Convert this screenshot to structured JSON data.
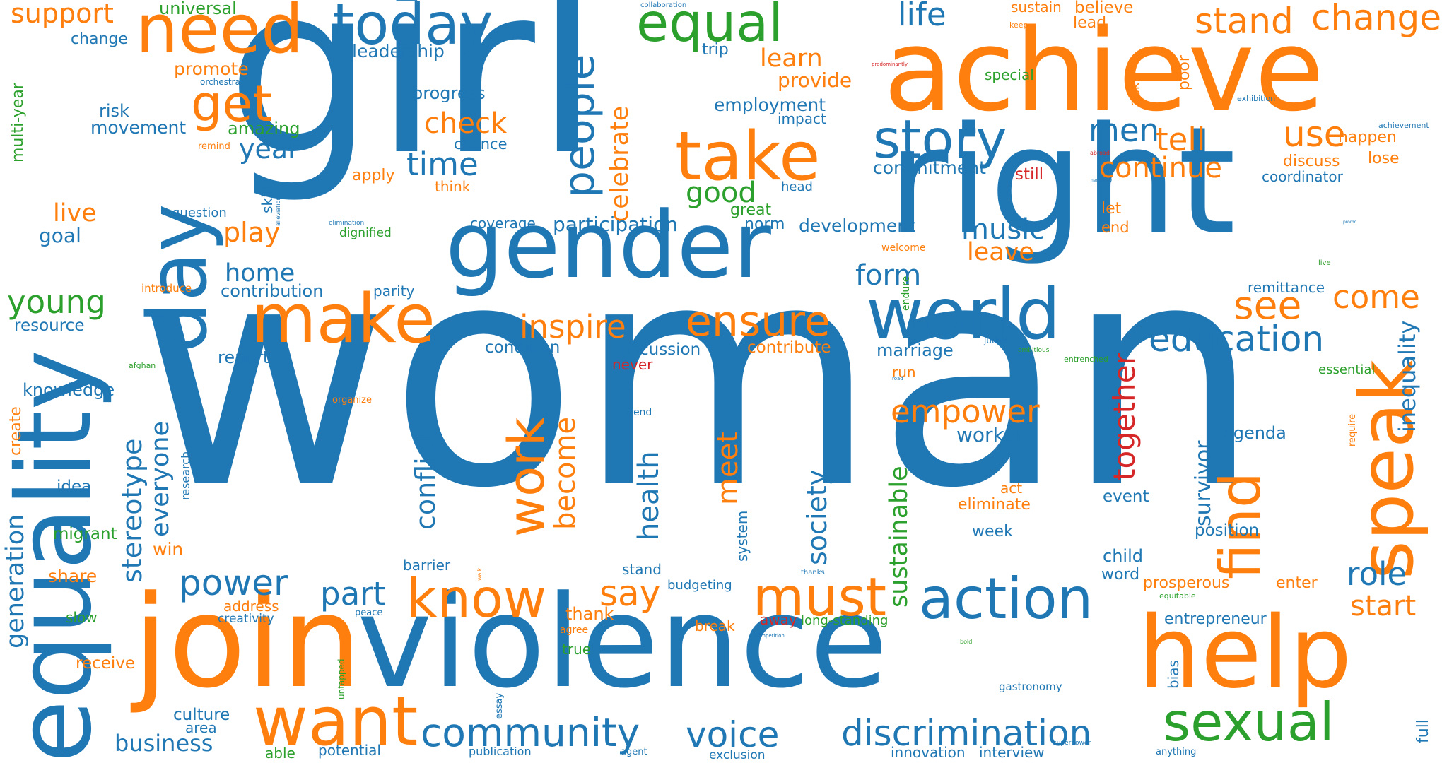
{
  "palette": {
    "blue": "#1f77b4",
    "orange": "#ff7f0e",
    "green": "#2ca02c",
    "red": "#d62728"
  },
  "words": [
    {
      "text": "woman",
      "color": "blue",
      "orientation": "horizontal"
    },
    {
      "text": "girl",
      "color": "blue",
      "orientation": "horizontal"
    },
    {
      "text": "right",
      "color": "blue",
      "orientation": "horizontal"
    },
    {
      "text": "achieve",
      "color": "orange",
      "orientation": "horizontal"
    },
    {
      "text": "violence",
      "color": "blue",
      "orientation": "horizontal"
    },
    {
      "text": "equality",
      "color": "blue",
      "orientation": "vertical"
    },
    {
      "text": "gender",
      "color": "blue",
      "orientation": "horizontal"
    },
    {
      "text": "join",
      "color": "orange",
      "orientation": "horizontal"
    },
    {
      "text": "help",
      "color": "orange",
      "orientation": "horizontal"
    },
    {
      "text": "day",
      "color": "blue",
      "orientation": "vertical"
    },
    {
      "text": "world",
      "color": "blue",
      "orientation": "horizontal"
    },
    {
      "text": "speak",
      "color": "orange",
      "orientation": "vertical"
    },
    {
      "text": "take",
      "color": "orange",
      "orientation": "horizontal"
    },
    {
      "text": "make",
      "color": "orange",
      "orientation": "horizontal"
    },
    {
      "text": "need",
      "color": "orange",
      "orientation": "horizontal"
    },
    {
      "text": "want",
      "color": "orange",
      "orientation": "horizontal"
    },
    {
      "text": "find",
      "color": "orange",
      "orientation": "vertical"
    },
    {
      "text": "action",
      "color": "blue",
      "orientation": "horizontal"
    },
    {
      "text": "sexual",
      "color": "green",
      "orientation": "horizontal"
    },
    {
      "text": "today",
      "color": "blue",
      "orientation": "horizontal"
    },
    {
      "text": "know",
      "color": "orange",
      "orientation": "horizontal"
    },
    {
      "text": "must",
      "color": "orange",
      "orientation": "horizontal"
    },
    {
      "text": "story",
      "color": "blue",
      "orientation": "horizontal"
    },
    {
      "text": "equal",
      "color": "green",
      "orientation": "horizontal"
    },
    {
      "text": "people",
      "color": "blue",
      "orientation": "vertical"
    },
    {
      "text": "work",
      "color": "orange",
      "orientation": "vertical"
    },
    {
      "text": "get",
      "color": "orange",
      "orientation": "horizontal"
    },
    {
      "text": "ensure",
      "color": "orange",
      "orientation": "horizontal"
    },
    {
      "text": "community",
      "color": "blue",
      "orientation": "horizontal"
    },
    {
      "text": "discrimination",
      "color": "blue",
      "orientation": "horizontal"
    },
    {
      "text": "education",
      "color": "blue",
      "orientation": "horizontal"
    },
    {
      "text": "voice",
      "color": "blue",
      "orientation": "horizontal"
    },
    {
      "text": "change",
      "color": "orange",
      "orientation": "horizontal"
    },
    {
      "text": "stand",
      "color": "orange",
      "orientation": "horizontal"
    },
    {
      "text": "power",
      "color": "blue",
      "orientation": "horizontal"
    },
    {
      "text": "see",
      "color": "orange",
      "orientation": "horizontal"
    },
    {
      "text": "music",
      "color": "blue",
      "orientation": "horizontal"
    },
    {
      "text": "empower",
      "color": "orange",
      "orientation": "horizontal"
    },
    {
      "text": "inspire",
      "color": "orange",
      "orientation": "horizontal"
    },
    {
      "text": "say",
      "color": "orange",
      "orientation": "horizontal"
    },
    {
      "text": "life",
      "color": "blue",
      "orientation": "horizontal"
    },
    {
      "text": "use",
      "color": "orange",
      "orientation": "horizontal"
    },
    {
      "text": "men",
      "color": "blue",
      "orientation": "horizontal"
    },
    {
      "text": "time",
      "color": "blue",
      "orientation": "horizontal"
    },
    {
      "text": "check",
      "color": "orange",
      "orientation": "horizontal"
    },
    {
      "text": "tell",
      "color": "orange",
      "orientation": "horizontal"
    },
    {
      "text": "continue",
      "color": "orange",
      "orientation": "horizontal"
    },
    {
      "text": "come",
      "color": "orange",
      "orientation": "horizontal"
    },
    {
      "text": "role",
      "color": "blue",
      "orientation": "horizontal"
    },
    {
      "text": "start",
      "color": "orange",
      "orientation": "horizontal"
    },
    {
      "text": "young",
      "color": "green",
      "orientation": "horizontal"
    },
    {
      "text": "part",
      "color": "blue",
      "orientation": "horizontal"
    },
    {
      "text": "form",
      "color": "blue",
      "orientation": "horizontal"
    },
    {
      "text": "leave",
      "color": "orange",
      "orientation": "horizontal"
    },
    {
      "text": "good",
      "color": "green",
      "orientation": "horizontal"
    },
    {
      "text": "year",
      "color": "blue",
      "orientation": "horizontal"
    },
    {
      "text": "home",
      "color": "blue",
      "orientation": "horizontal"
    },
    {
      "text": "play",
      "color": "orange",
      "orientation": "horizontal"
    },
    {
      "text": "support",
      "color": "orange",
      "orientation": "horizontal"
    },
    {
      "text": "live",
      "color": "orange",
      "orientation": "horizontal"
    },
    {
      "text": "learn",
      "color": "orange",
      "orientation": "horizontal"
    },
    {
      "text": "together",
      "color": "red",
      "orientation": "vertical"
    },
    {
      "text": "celebrate",
      "color": "orange",
      "orientation": "vertical"
    },
    {
      "text": "health",
      "color": "blue",
      "orientation": "vertical"
    },
    {
      "text": "meet",
      "color": "orange",
      "orientation": "vertical"
    },
    {
      "text": "society",
      "color": "blue",
      "orientation": "vertical"
    },
    {
      "text": "sustainable",
      "color": "green",
      "orientation": "vertical"
    },
    {
      "text": "become",
      "color": "orange",
      "orientation": "vertical"
    },
    {
      "text": "stereotype",
      "color": "blue",
      "orientation": "vertical"
    },
    {
      "text": "everyone",
      "color": "blue",
      "orientation": "vertical"
    },
    {
      "text": "conflict",
      "color": "blue",
      "orientation": "vertical"
    },
    {
      "text": "inequality",
      "color": "blue",
      "orientation": "vertical"
    },
    {
      "text": "generation",
      "color": "blue",
      "orientation": "vertical"
    },
    {
      "text": "survivor",
      "color": "blue",
      "orientation": "vertical"
    },
    {
      "text": "business",
      "color": "blue",
      "orientation": "horizontal"
    },
    {
      "text": "development",
      "color": "blue",
      "orientation": "horizontal"
    },
    {
      "text": "participation",
      "color": "blue",
      "orientation": "horizontal"
    },
    {
      "text": "commitment",
      "color": "blue",
      "orientation": "horizontal"
    },
    {
      "text": "contribution",
      "color": "blue",
      "orientation": "horizontal"
    },
    {
      "text": "provide",
      "color": "orange",
      "orientation": "horizontal"
    },
    {
      "text": "employment",
      "color": "blue",
      "orientation": "horizontal"
    },
    {
      "text": "leadership",
      "color": "blue",
      "orientation": "horizontal"
    },
    {
      "text": "progress",
      "color": "blue",
      "orientation": "horizontal"
    },
    {
      "text": "movement",
      "color": "blue",
      "orientation": "horizontal"
    },
    {
      "text": "universal",
      "color": "green",
      "orientation": "horizontal"
    },
    {
      "text": "promote",
      "color": "orange",
      "orientation": "horizontal"
    },
    {
      "text": "change",
      "color": "blue",
      "orientation": "horizontal"
    },
    {
      "text": "risk",
      "color": "blue",
      "orientation": "horizontal"
    },
    {
      "text": "amazing",
      "color": "green",
      "orientation": "horizontal"
    },
    {
      "text": "goal",
      "color": "blue",
      "orientation": "horizontal"
    },
    {
      "text": "resource",
      "color": "blue",
      "orientation": "horizontal"
    },
    {
      "text": "knowledge",
      "color": "blue",
      "orientation": "horizontal"
    },
    {
      "text": "report",
      "color": "blue",
      "orientation": "horizontal"
    },
    {
      "text": "condition",
      "color": "blue",
      "orientation": "horizontal"
    },
    {
      "text": "discussion",
      "color": "blue",
      "orientation": "horizontal"
    },
    {
      "text": "contribute",
      "color": "orange",
      "orientation": "horizontal"
    },
    {
      "text": "marriage",
      "color": "blue",
      "orientation": "horizontal"
    },
    {
      "text": "worker",
      "color": "blue",
      "orientation": "horizontal"
    },
    {
      "text": "agenda",
      "color": "blue",
      "orientation": "horizontal"
    },
    {
      "text": "eliminate",
      "color": "orange",
      "orientation": "horizontal"
    },
    {
      "text": "week",
      "color": "blue",
      "orientation": "horizontal"
    },
    {
      "text": "event",
      "color": "blue",
      "orientation": "horizontal"
    },
    {
      "text": "position",
      "color": "blue",
      "orientation": "horizontal"
    },
    {
      "text": "child",
      "color": "blue",
      "orientation": "horizontal"
    },
    {
      "text": "word",
      "color": "blue",
      "orientation": "horizontal"
    },
    {
      "text": "prosperous",
      "color": "orange",
      "orientation": "horizontal"
    },
    {
      "text": "enter",
      "color": "orange",
      "orientation": "horizontal"
    },
    {
      "text": "entrepreneur",
      "color": "blue",
      "orientation": "horizontal"
    },
    {
      "text": "remittance",
      "color": "blue",
      "orientation": "horizontal"
    },
    {
      "text": "happen",
      "color": "orange",
      "orientation": "horizontal"
    },
    {
      "text": "lose",
      "color": "orange",
      "orientation": "horizontal"
    },
    {
      "text": "discuss",
      "color": "orange",
      "orientation": "horizontal"
    },
    {
      "text": "coordinator",
      "color": "blue",
      "orientation": "horizontal"
    },
    {
      "text": "believe",
      "color": "orange",
      "orientation": "horizontal"
    },
    {
      "text": "sustain",
      "color": "orange",
      "orientation": "horizontal"
    },
    {
      "text": "lead",
      "color": "orange",
      "orientation": "horizontal"
    },
    {
      "text": "special",
      "color": "green",
      "orientation": "horizontal"
    },
    {
      "text": "still",
      "color": "red",
      "orientation": "horizontal"
    },
    {
      "text": "let",
      "color": "orange",
      "orientation": "horizontal"
    },
    {
      "text": "end",
      "color": "orange",
      "orientation": "horizontal"
    },
    {
      "text": "impact",
      "color": "blue",
      "orientation": "horizontal"
    },
    {
      "text": "chance",
      "color": "blue",
      "orientation": "horizontal"
    },
    {
      "text": "think",
      "color": "orange",
      "orientation": "horizontal"
    },
    {
      "text": "apply",
      "color": "orange",
      "orientation": "horizontal"
    },
    {
      "text": "trip",
      "color": "blue",
      "orientation": "horizontal"
    },
    {
      "text": "great",
      "color": "green",
      "orientation": "horizontal"
    },
    {
      "text": "norm",
      "color": "blue",
      "orientation": "horizontal"
    },
    {
      "text": "coverage",
      "color": "blue",
      "orientation": "horizontal"
    },
    {
      "text": "head",
      "color": "blue",
      "orientation": "horizontal"
    },
    {
      "text": "question",
      "color": "blue",
      "orientation": "horizontal"
    },
    {
      "text": "dignified",
      "color": "green",
      "orientation": "horizontal"
    },
    {
      "text": "parity",
      "color": "blue",
      "orientation": "horizontal"
    },
    {
      "text": "introduce",
      "color": "orange",
      "orientation": "horizontal"
    },
    {
      "text": "never",
      "color": "red",
      "orientation": "horizontal"
    },
    {
      "text": "run",
      "color": "orange",
      "orientation": "horizontal"
    },
    {
      "text": "win",
      "color": "orange",
      "orientation": "horizontal"
    },
    {
      "text": "share",
      "color": "orange",
      "orientation": "horizontal"
    },
    {
      "text": "migrant",
      "color": "green",
      "orientation": "horizontal"
    },
    {
      "text": "idea",
      "color": "blue",
      "orientation": "horizontal"
    },
    {
      "text": "slow",
      "color": "green",
      "orientation": "horizontal"
    },
    {
      "text": "address",
      "color": "orange",
      "orientation": "horizontal"
    },
    {
      "text": "creativity",
      "color": "blue",
      "orientation": "horizontal"
    },
    {
      "text": "receive",
      "color": "orange",
      "orientation": "horizontal"
    },
    {
      "text": "culture",
      "color": "blue",
      "orientation": "horizontal"
    },
    {
      "text": "area",
      "color": "blue",
      "orientation": "horizontal"
    },
    {
      "text": "able",
      "color": "green",
      "orientation": "horizontal"
    },
    {
      "text": "potential",
      "color": "blue",
      "orientation": "horizontal"
    },
    {
      "text": "publication",
      "color": "blue",
      "orientation": "horizontal"
    },
    {
      "text": "exclusion",
      "color": "blue",
      "orientation": "horizontal"
    },
    {
      "text": "innovation",
      "color": "blue",
      "orientation": "horizontal"
    },
    {
      "text": "interview",
      "color": "blue",
      "orientation": "horizontal"
    },
    {
      "text": "gastronomy",
      "color": "blue",
      "orientation": "horizontal"
    },
    {
      "text": "stand",
      "color": "blue",
      "orientation": "horizontal"
    },
    {
      "text": "barrier",
      "color": "blue",
      "orientation": "horizontal"
    },
    {
      "text": "budgeting",
      "color": "blue",
      "orientation": "horizontal"
    },
    {
      "text": "thank",
      "color": "orange",
      "orientation": "horizontal"
    },
    {
      "text": "away",
      "color": "red",
      "orientation": "horizontal"
    },
    {
      "text": "long-standing",
      "color": "green",
      "orientation": "horizontal"
    },
    {
      "text": "break",
      "color": "orange",
      "orientation": "horizontal"
    },
    {
      "text": "true",
      "color": "green",
      "orientation": "horizontal"
    },
    {
      "text": "agree",
      "color": "orange",
      "orientation": "horizontal"
    },
    {
      "text": "act",
      "color": "orange",
      "orientation": "horizontal"
    },
    {
      "text": "essential",
      "color": "green",
      "orientation": "horizontal"
    },
    {
      "text": "orchestra",
      "color": "blue",
      "orientation": "horizontal"
    },
    {
      "text": "remind",
      "color": "orange",
      "orientation": "horizontal"
    },
    {
      "text": "welcome",
      "color": "orange",
      "orientation": "horizontal"
    },
    {
      "text": "organize",
      "color": "orange",
      "orientation": "horizontal"
    },
    {
      "text": "trend",
      "color": "blue",
      "orientation": "horizontal"
    },
    {
      "text": "peace",
      "color": "blue",
      "orientation": "horizontal"
    },
    {
      "text": "agent",
      "color": "blue",
      "orientation": "horizontal"
    },
    {
      "text": "anything",
      "color": "blue",
      "orientation": "horizontal"
    },
    {
      "text": "exhibition",
      "color": "blue",
      "orientation": "horizontal"
    },
    {
      "text": "achievement",
      "color": "blue",
      "orientation": "horizontal"
    },
    {
      "text": "judge",
      "color": "blue",
      "orientation": "horizontal"
    },
    {
      "text": "ambitious",
      "color": "green",
      "orientation": "horizontal"
    },
    {
      "text": "entrenched",
      "color": "green",
      "orientation": "horizontal"
    },
    {
      "text": "afghan",
      "color": "green",
      "orientation": "horizontal"
    },
    {
      "text": "collaboration",
      "color": "blue",
      "orientation": "horizontal"
    },
    {
      "text": "keep",
      "color": "orange",
      "orientation": "horizontal"
    },
    {
      "text": "predominantly",
      "color": "red",
      "orientation": "horizontal"
    },
    {
      "text": "elimination",
      "color": "blue",
      "orientation": "horizontal"
    },
    {
      "text": "abroad",
      "color": "red",
      "orientation": "horizontal"
    },
    {
      "text": "necessary",
      "color": "blue",
      "orientation": "horizontal"
    },
    {
      "text": "live",
      "color": "green",
      "orientation": "horizontal"
    },
    {
      "text": "equitable",
      "color": "green",
      "orientation": "horizontal"
    },
    {
      "text": "competition",
      "color": "blue",
      "orientation": "horizontal"
    },
    {
      "text": "bold",
      "color": "green",
      "orientation": "horizontal"
    },
    {
      "text": "superpower",
      "color": "blue",
      "orientation": "horizontal"
    },
    {
      "text": "thanks",
      "color": "blue",
      "orientation": "horizontal"
    },
    {
      "text": "road",
      "color": "blue",
      "orientation": "horizontal"
    },
    {
      "text": "promo",
      "color": "blue",
      "orientation": "horizontal"
    },
    {
      "text": "multi-year",
      "color": "green",
      "orientation": "vertical"
    },
    {
      "text": "create",
      "color": "orange",
      "orientation": "vertical"
    },
    {
      "text": "research",
      "color": "blue",
      "orientation": "vertical"
    },
    {
      "text": "skill",
      "color": "blue",
      "orientation": "vertical"
    },
    {
      "text": "system",
      "color": "blue",
      "orientation": "vertical"
    },
    {
      "text": "poor",
      "color": "orange",
      "orientation": "vertical"
    },
    {
      "text": "ask",
      "color": "orange",
      "orientation": "vertical"
    },
    {
      "text": "bias",
      "color": "blue",
      "orientation": "vertical"
    },
    {
      "text": "full",
      "color": "blue",
      "orientation": "vertical"
    },
    {
      "text": "essay",
      "color": "blue",
      "orientation": "vertical"
    },
    {
      "text": "untapped",
      "color": "green",
      "orientation": "vertical"
    },
    {
      "text": "endure",
      "color": "green",
      "orientation": "vertical"
    },
    {
      "text": "require",
      "color": "orange",
      "orientation": "vertical"
    },
    {
      "text": "alleviation",
      "color": "blue",
      "orientation": "vertical"
    },
    {
      "text": "walk",
      "color": "orange",
      "orientation": "vertical"
    }
  ]
}
